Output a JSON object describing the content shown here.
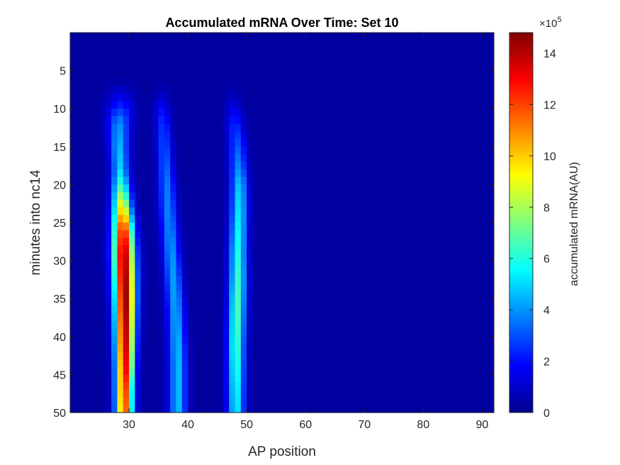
{
  "chart_data": {
    "type": "heatmap",
    "title": "Accumulated mRNA Over Time: Set 10",
    "xlabel": "AP position",
    "ylabel": "minutes into nc14",
    "colorbar_label": "accumulated mRNA(AU)",
    "colorbar_exponent_base": "×10",
    "colorbar_exponent_power": "5",
    "colormap": "jet",
    "xlim": [
      20,
      92
    ],
    "ylim": [
      0,
      50
    ],
    "y_reversed": true,
    "clim": [
      0,
      14.8
    ],
    "x_ticks": [
      30,
      40,
      50,
      60,
      70,
      80,
      90
    ],
    "x_tick_labels": [
      "30",
      "40",
      "50",
      "60",
      "70",
      "80",
      "90"
    ],
    "y_ticks": [
      5,
      10,
      15,
      20,
      25,
      30,
      35,
      40,
      45,
      50
    ],
    "y_tick_labels": [
      "5",
      "10",
      "15",
      "20",
      "25",
      "30",
      "35",
      "40",
      "45",
      "50"
    ],
    "colorbar_ticks": [
      0,
      2,
      4,
      6,
      8,
      10,
      12,
      14
    ],
    "colorbar_tick_labels": [
      "0",
      "2",
      "4",
      "6",
      "8",
      "10",
      "12",
      "14"
    ],
    "stripes": [
      {
        "name": "",
        "time_points": [
          0,
          6,
          8,
          10,
          12,
          15,
          18,
          20,
          23,
          26,
          29,
          32,
          35,
          38,
          41,
          44,
          47,
          50
        ],
        "center": [
          28.5,
          28.5,
          28.5,
          28.5,
          28.3,
          28.3,
          28.5,
          28.6,
          28.8,
          29.0,
          29.1,
          29.2,
          29.3,
          29.3,
          29.3,
          29.3,
          29.2,
          29.2
        ],
        "width": [
          1.5,
          1.5,
          1.5,
          1.5,
          1.3,
          1.1,
          1.0,
          1.05,
          1.1,
          1.2,
          1.25,
          1.25,
          1.2,
          1.15,
          1.1,
          1.05,
          1.0,
          1.0
        ],
        "amplitude": [
          0,
          0,
          0.8,
          2.2,
          3.6,
          4.2,
          4.6,
          6.0,
          9.5,
          12.8,
          14.2,
          14.5,
          14.6,
          14.2,
          13.8,
          13.2,
          12.4,
          11.8
        ]
      },
      {
        "name": "",
        "time_points": [
          0,
          6,
          8,
          10,
          12,
          15,
          18,
          20,
          23,
          26,
          29,
          32,
          35,
          38,
          41,
          44,
          47,
          50
        ],
        "center": [
          35.6,
          35.6,
          35.6,
          35.6,
          35.8,
          36.0,
          36.2,
          36.4,
          36.6,
          36.9,
          37.2,
          37.5,
          37.8,
          38.0,
          38.2,
          38.3,
          38.3,
          38.3
        ],
        "width": [
          0.9,
          0.9,
          0.9,
          0.9,
          0.9,
          0.9,
          0.9,
          0.95,
          1.0,
          1.0,
          1.0,
          1.0,
          1.0,
          1.0,
          1.0,
          1.0,
          1.0,
          1.0
        ],
        "amplitude": [
          0,
          0,
          0.5,
          1.5,
          2.2,
          2.6,
          3.0,
          3.3,
          3.4,
          3.5,
          3.7,
          3.8,
          3.9,
          4.0,
          4.2,
          4.3,
          4.3,
          4.3
        ]
      },
      {
        "name": "",
        "time_points": [
          0,
          6,
          8,
          10,
          12,
          15,
          18,
          20,
          23,
          26,
          29,
          32,
          35,
          38,
          41,
          44,
          47,
          50
        ],
        "center": [
          47.6,
          47.6,
          47.6,
          47.8,
          48.0,
          48.4,
          48.6,
          48.7,
          48.7,
          48.6,
          48.5,
          48.5,
          48.4,
          48.3,
          48.2,
          48.2,
          48.2,
          48.2
        ],
        "width": [
          0.9,
          0.9,
          0.9,
          0.95,
          1.0,
          1.0,
          1.0,
          1.0,
          1.0,
          1.0,
          1.0,
          1.0,
          1.0,
          1.0,
          1.0,
          1.0,
          1.0,
          1.0
        ],
        "amplitude": [
          0,
          0,
          0.3,
          1.2,
          2.0,
          2.8,
          3.6,
          4.4,
          4.9,
          5.2,
          5.6,
          6.0,
          6.3,
          6.3,
          6.1,
          5.8,
          5.3,
          5.0
        ]
      }
    ]
  }
}
